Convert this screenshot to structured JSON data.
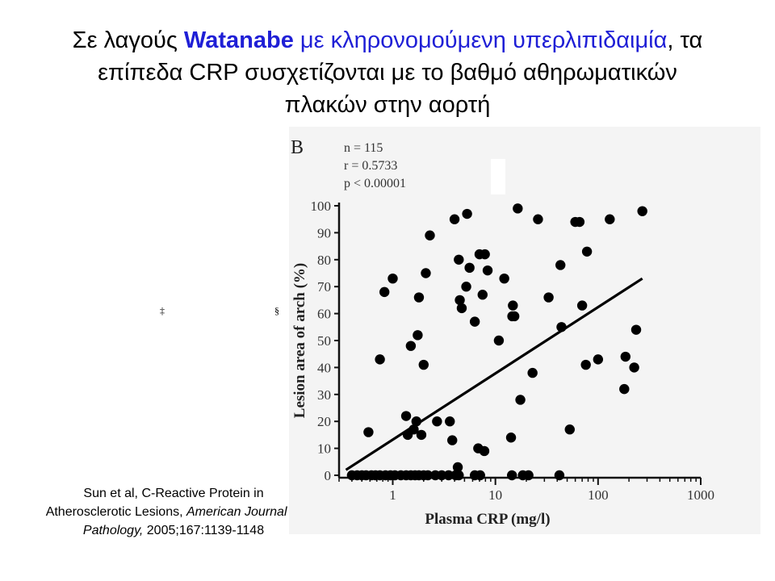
{
  "title": {
    "part1": "Σε λαγούς ",
    "part2": "Watanabe",
    "part3": " με κληρονομούμενη υπερλιπιδαιμία",
    "part4": ", τα",
    "line2": "επίπεδα CRP συσχετίζονται με το βαθμό αθηρωματικών",
    "line3": "πλακών στην αορτή"
  },
  "stray_glyphs": {
    "dagger": "‡",
    "section": "§"
  },
  "citation": {
    "line1": "Sun et al, C-Reactive Protein in",
    "line2a": "Atherosclerotic Lesions, ",
    "line2b": "American Journal of",
    "line3a": "Pathology,",
    "line3b": " 2005;167:1139-1148"
  },
  "chart_data": {
    "type": "scatter",
    "panel_label": "B",
    "stats": [
      "n = 115",
      "r = 0.5733",
      "p < 0.00001"
    ],
    "xlabel": "Plasma CRP (mg/l)",
    "ylabel": "Lesion area of arch (%)",
    "x_scale": "log",
    "xlim": [
      0.3,
      1000
    ],
    "ylim": [
      0,
      100
    ],
    "x_ticks": [
      1,
      10,
      100,
      1000
    ],
    "x_tick_labels": [
      "1",
      "10",
      "100",
      "1000"
    ],
    "y_ticks": [
      0,
      10,
      20,
      30,
      40,
      50,
      60,
      70,
      80,
      90,
      100
    ],
    "y_tick_labels": [
      "0",
      "10",
      "20",
      "30",
      "40",
      "50",
      "60",
      "70",
      "80",
      "90",
      "100"
    ],
    "regression_line": {
      "x": [
        0.35,
        270
      ],
      "y": [
        2,
        73
      ]
    },
    "points": [
      {
        "x": 0.4,
        "y": 0
      },
      {
        "x": 0.45,
        "y": 0
      },
      {
        "x": 0.5,
        "y": 0
      },
      {
        "x": 0.55,
        "y": 0
      },
      {
        "x": 0.62,
        "y": 0
      },
      {
        "x": 0.68,
        "y": 0
      },
      {
        "x": 0.75,
        "y": 0
      },
      {
        "x": 0.85,
        "y": 0
      },
      {
        "x": 0.95,
        "y": 0
      },
      {
        "x": 1.05,
        "y": 0
      },
      {
        "x": 1.2,
        "y": 0
      },
      {
        "x": 1.35,
        "y": 0
      },
      {
        "x": 1.5,
        "y": 0
      },
      {
        "x": 1.65,
        "y": 0
      },
      {
        "x": 1.8,
        "y": 0
      },
      {
        "x": 2.0,
        "y": 0
      },
      {
        "x": 2.2,
        "y": 0
      },
      {
        "x": 2.6,
        "y": 0
      },
      {
        "x": 3.0,
        "y": 0
      },
      {
        "x": 3.5,
        "y": 0
      },
      {
        "x": 4.1,
        "y": 0
      },
      {
        "x": 4.4,
        "y": 0
      },
      {
        "x": 6.3,
        "y": 0
      },
      {
        "x": 7.1,
        "y": 0
      },
      {
        "x": 14.5,
        "y": 0
      },
      {
        "x": 18.5,
        "y": 0
      },
      {
        "x": 21,
        "y": 0
      },
      {
        "x": 42,
        "y": 0
      },
      {
        "x": 0.58,
        "y": 16
      },
      {
        "x": 0.75,
        "y": 43
      },
      {
        "x": 0.83,
        "y": 68
      },
      {
        "x": 1.0,
        "y": 73
      },
      {
        "x": 1.35,
        "y": 22
      },
      {
        "x": 1.4,
        "y": 15
      },
      {
        "x": 1.5,
        "y": 48
      },
      {
        "x": 1.6,
        "y": 17
      },
      {
        "x": 1.7,
        "y": 20
      },
      {
        "x": 1.75,
        "y": 52
      },
      {
        "x": 1.8,
        "y": 66
      },
      {
        "x": 1.9,
        "y": 15
      },
      {
        "x": 2.0,
        "y": 41
      },
      {
        "x": 2.1,
        "y": 75
      },
      {
        "x": 2.3,
        "y": 89
      },
      {
        "x": 2.7,
        "y": 20
      },
      {
        "x": 3.6,
        "y": 20
      },
      {
        "x": 3.8,
        "y": 13
      },
      {
        "x": 4.0,
        "y": 95
      },
      {
        "x": 4.3,
        "y": 3
      },
      {
        "x": 4.4,
        "y": 80
      },
      {
        "x": 4.5,
        "y": 65
      },
      {
        "x": 4.7,
        "y": 62
      },
      {
        "x": 5.2,
        "y": 70
      },
      {
        "x": 5.3,
        "y": 97
      },
      {
        "x": 5.6,
        "y": 77
      },
      {
        "x": 6.3,
        "y": 57
      },
      {
        "x": 6.8,
        "y": 10
      },
      {
        "x": 7.0,
        "y": 82
      },
      {
        "x": 7.5,
        "y": 67
      },
      {
        "x": 7.8,
        "y": 9
      },
      {
        "x": 7.9,
        "y": 82
      },
      {
        "x": 8.4,
        "y": 76
      },
      {
        "x": 10.8,
        "y": 50
      },
      {
        "x": 12.2,
        "y": 73
      },
      {
        "x": 14.2,
        "y": 14
      },
      {
        "x": 14.6,
        "y": 59
      },
      {
        "x": 14.8,
        "y": 63
      },
      {
        "x": 15.3,
        "y": 59
      },
      {
        "x": 16.5,
        "y": 99
      },
      {
        "x": 17.5,
        "y": 28
      },
      {
        "x": 23,
        "y": 38
      },
      {
        "x": 26,
        "y": 95
      },
      {
        "x": 33,
        "y": 66
      },
      {
        "x": 43,
        "y": 78
      },
      {
        "x": 44,
        "y": 55
      },
      {
        "x": 53,
        "y": 17
      },
      {
        "x": 60,
        "y": 94
      },
      {
        "x": 66,
        "y": 94
      },
      {
        "x": 70,
        "y": 63
      },
      {
        "x": 76,
        "y": 41
      },
      {
        "x": 78,
        "y": 83
      },
      {
        "x": 100,
        "y": 43
      },
      {
        "x": 130,
        "y": 95
      },
      {
        "x": 180,
        "y": 32
      },
      {
        "x": 185,
        "y": 44
      },
      {
        "x": 225,
        "y": 40
      },
      {
        "x": 235,
        "y": 54
      },
      {
        "x": 270,
        "y": 98
      }
    ]
  }
}
